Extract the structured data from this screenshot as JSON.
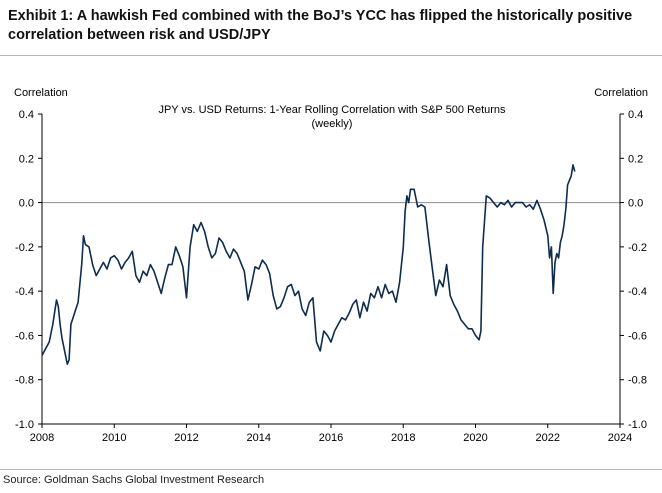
{
  "exhibit": {
    "title": "Exhibit 1: A hawkish Fed combined with the BoJ’s YCC has flipped the historically positive correlation between risk and USD/JPY",
    "source": "Source: Goldman Sachs Global Investment Research"
  },
  "colors": {
    "line": "#0d2c4e",
    "axis": "#000000",
    "zero_line": "#8c8c8c",
    "rule": "#b8b8b8"
  },
  "chart_data": {
    "type": "line",
    "title": "JPY vs. USD Returns: 1-Year Rolling Correlation with S&P 500 Returns",
    "subtitle": "(weekly)",
    "ylabel_left": "Correlation",
    "ylabel_right": "Correlation",
    "xlim": [
      2008,
      2024
    ],
    "ylim": [
      -1.0,
      0.4
    ],
    "x_ticks": [
      2008,
      2010,
      2012,
      2014,
      2016,
      2018,
      2020,
      2022,
      2024
    ],
    "y_ticks": [
      0.4,
      0.2,
      0.0,
      -0.2,
      -0.4,
      -0.6,
      -0.8,
      -1.0
    ],
    "y_tick_labels": [
      "0.4",
      "0.2",
      "0.0",
      "-0.2",
      "-0.4",
      "-0.6",
      "-0.8",
      "-1.0"
    ],
    "reference_line": 0.0,
    "grid": false,
    "series": [
      {
        "x": [
          2008.0,
          2008.1,
          2008.2,
          2008.3,
          2008.4,
          2008.45,
          2008.5,
          2008.55,
          2008.6,
          2008.7,
          2008.75,
          2008.8,
          2008.9,
          2009.0,
          2009.1,
          2009.15,
          2009.2,
          2009.3,
          2009.4,
          2009.5,
          2009.6,
          2009.7,
          2009.8,
          2009.9,
          2010.0,
          2010.1,
          2010.2,
          2010.3,
          2010.4,
          2010.5,
          2010.6,
          2010.7,
          2010.8,
          2010.9,
          2011.0,
          2011.1,
          2011.2,
          2011.3,
          2011.4,
          2011.5,
          2011.6,
          2011.7,
          2011.8,
          2011.9,
          2012.0,
          2012.1,
          2012.2,
          2012.3,
          2012.4,
          2012.5,
          2012.6,
          2012.7,
          2012.8,
          2012.9,
          2013.0,
          2013.1,
          2013.2,
          2013.3,
          2013.4,
          2013.5,
          2013.6,
          2013.7,
          2013.8,
          2013.9,
          2014.0,
          2014.1,
          2014.2,
          2014.3,
          2014.4,
          2014.5,
          2014.6,
          2014.7,
          2014.8,
          2014.9,
          2015.0,
          2015.1,
          2015.2,
          2015.3,
          2015.4,
          2015.5,
          2015.6,
          2015.7,
          2015.8,
          2015.9,
          2016.0,
          2016.1,
          2016.2,
          2016.3,
          2016.4,
          2016.5,
          2016.6,
          2016.7,
          2016.8,
          2016.9,
          2017.0,
          2017.1,
          2017.2,
          2017.3,
          2017.4,
          2017.5,
          2017.6,
          2017.7,
          2017.8,
          2017.9,
          2018.0,
          2018.05,
          2018.1,
          2018.15,
          2018.2,
          2018.3,
          2018.4,
          2018.5,
          2018.6,
          2018.7,
          2018.8,
          2018.9,
          2019.0,
          2019.1,
          2019.2,
          2019.3,
          2019.4,
          2019.5,
          2019.6,
          2019.7,
          2019.8,
          2019.9,
          2020.0,
          2020.1,
          2020.15,
          2020.2,
          2020.3,
          2020.4,
          2020.5,
          2020.6,
          2020.7,
          2020.8,
          2020.9,
          2021.0,
          2021.1,
          2021.2,
          2021.3,
          2021.4,
          2021.5,
          2021.6,
          2021.7,
          2021.8,
          2021.9,
          2022.0,
          2022.05,
          2022.1,
          2022.15,
          2022.2,
          2022.25,
          2022.3,
          2022.35,
          2022.4,
          2022.45,
          2022.5,
          2022.55,
          2022.6,
          2022.65,
          2022.7,
          2022.75
        ],
        "y": [
          -0.69,
          -0.66,
          -0.63,
          -0.55,
          -0.44,
          -0.47,
          -0.55,
          -0.61,
          -0.65,
          -0.73,
          -0.71,
          -0.55,
          -0.5,
          -0.45,
          -0.28,
          -0.15,
          -0.19,
          -0.2,
          -0.28,
          -0.33,
          -0.3,
          -0.27,
          -0.3,
          -0.25,
          -0.24,
          -0.26,
          -0.3,
          -0.27,
          -0.25,
          -0.22,
          -0.33,
          -0.36,
          -0.31,
          -0.33,
          -0.28,
          -0.31,
          -0.36,
          -0.41,
          -0.34,
          -0.28,
          -0.28,
          -0.2,
          -0.24,
          -0.29,
          -0.43,
          -0.2,
          -0.1,
          -0.13,
          -0.09,
          -0.13,
          -0.2,
          -0.25,
          -0.23,
          -0.16,
          -0.18,
          -0.22,
          -0.25,
          -0.21,
          -0.23,
          -0.27,
          -0.31,
          -0.44,
          -0.37,
          -0.29,
          -0.3,
          -0.26,
          -0.28,
          -0.32,
          -0.42,
          -0.48,
          -0.47,
          -0.43,
          -0.38,
          -0.37,
          -0.42,
          -0.4,
          -0.48,
          -0.51,
          -0.45,
          -0.43,
          -0.63,
          -0.67,
          -0.58,
          -0.6,
          -0.63,
          -0.58,
          -0.55,
          -0.52,
          -0.53,
          -0.5,
          -0.46,
          -0.44,
          -0.52,
          -0.45,
          -0.49,
          -0.41,
          -0.43,
          -0.38,
          -0.43,
          -0.37,
          -0.41,
          -0.4,
          -0.45,
          -0.36,
          -0.2,
          -0.04,
          0.03,
          0.0,
          0.06,
          0.06,
          -0.02,
          -0.01,
          -0.02,
          -0.16,
          -0.29,
          -0.42,
          -0.35,
          -0.38,
          -0.28,
          -0.42,
          -0.46,
          -0.49,
          -0.53,
          -0.55,
          -0.57,
          -0.57,
          -0.6,
          -0.62,
          -0.58,
          -0.2,
          0.03,
          0.02,
          0.0,
          -0.02,
          0.0,
          -0.01,
          0.01,
          -0.02,
          0.0,
          0.0,
          0.0,
          -0.02,
          -0.01,
          -0.03,
          0.01,
          -0.03,
          -0.08,
          -0.15,
          -0.25,
          -0.2,
          -0.41,
          -0.27,
          -0.23,
          -0.25,
          -0.18,
          -0.15,
          -0.1,
          -0.03,
          0.08,
          0.1,
          0.12,
          0.17,
          0.14
        ]
      }
    ]
  }
}
